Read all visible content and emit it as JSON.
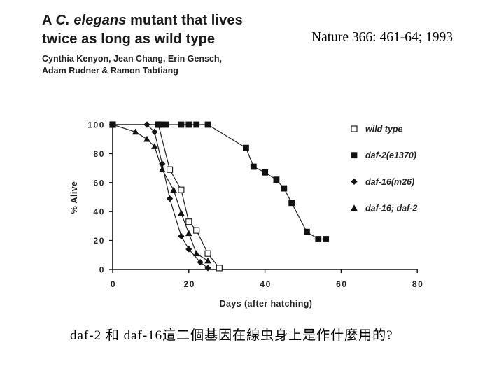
{
  "header": {
    "title_line1_prefix": "A ",
    "title_line1_italic": "C. elegans",
    "title_line1_suffix": " mutant that lives",
    "title_line2": "twice as long as wild type",
    "authors_line1": "Cynthia Kenyon, Jean Chang, Erin Gensch,",
    "authors_line2": "Adam Rudner & Ramon Tabtiang"
  },
  "citation": "Nature 366: 461-64; 1993",
  "caption": "daf-2 和 daf-16這二個基因在線虫身上是作什麼用的?",
  "colors": {
    "ink": "#111111",
    "background": "#ffffff"
  },
  "chart_data": {
    "type": "line",
    "title": "",
    "xlabel": "Days (after hatching)",
    "ylabel": "% Alive",
    "xlim": [
      0,
      80
    ],
    "ylim": [
      0,
      100
    ],
    "x_ticks": [
      0,
      20,
      40,
      60,
      80
    ],
    "y_ticks": [
      100,
      80,
      60,
      40,
      20,
      0
    ],
    "grid": false,
    "legend": "right",
    "series": [
      {
        "name": "wild type",
        "marker": "open-square",
        "points": [
          [
            0,
            100
          ],
          [
            12,
            100
          ],
          [
            15,
            69
          ],
          [
            18,
            55
          ],
          [
            20,
            33
          ],
          [
            22,
            27
          ],
          [
            25,
            11
          ],
          [
            28,
            1
          ]
        ]
      },
      {
        "name": "daf-2(e1370)",
        "marker": "filled-square",
        "points": [
          [
            0,
            100
          ],
          [
            12,
            100
          ],
          [
            13,
            100
          ],
          [
            14,
            100
          ],
          [
            18,
            100
          ],
          [
            20,
            100
          ],
          [
            22,
            100
          ],
          [
            25,
            100
          ],
          [
            35,
            84
          ],
          [
            37,
            71
          ],
          [
            40,
            67
          ],
          [
            43,
            62
          ],
          [
            45,
            56
          ],
          [
            47,
            46
          ],
          [
            51,
            26
          ],
          [
            54,
            21
          ],
          [
            56,
            21
          ]
        ]
      },
      {
        "name": "daf-16(m26)",
        "marker": "filled-diamond",
        "points": [
          [
            0,
            100
          ],
          [
            9,
            100
          ],
          [
            11,
            95
          ],
          [
            13,
            73
          ],
          [
            15,
            49
          ],
          [
            18,
            23
          ],
          [
            20,
            14
          ],
          [
            23,
            5
          ],
          [
            25,
            1
          ]
        ]
      },
      {
        "name": "daf-16; daf-2",
        "marker": "filled-triangle",
        "points": [
          [
            0,
            100
          ],
          [
            6,
            95
          ],
          [
            9,
            90
          ],
          [
            11,
            85
          ],
          [
            13,
            69
          ],
          [
            16,
            55
          ],
          [
            18,
            39
          ],
          [
            20,
            25
          ],
          [
            22,
            11
          ],
          [
            25,
            6
          ]
        ]
      }
    ]
  }
}
